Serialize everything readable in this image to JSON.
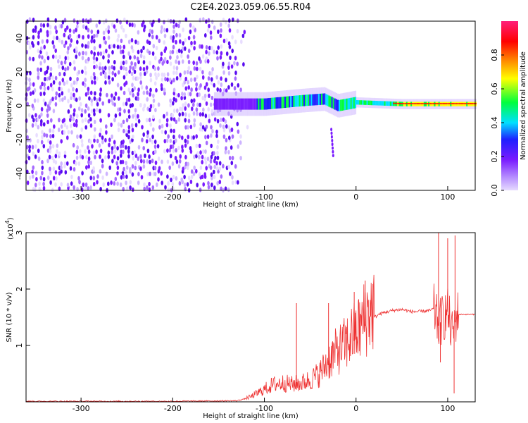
{
  "title": "C2E4.2023.059.06.55.R04",
  "colors": {
    "snr_line": "#ee3333",
    "axis": "#000000",
    "spectro_noise": "#7a1cff",
    "colorbar_stops": [
      "#d9c6ff",
      "#7a1cff",
      "#1f1fff",
      "#00e0ff",
      "#00ff3c",
      "#ffff00",
      "#ff7a00",
      "#ff0000",
      "#ff1f7a"
    ]
  },
  "chart_data": [
    {
      "type": "heatmap",
      "xlabel": "Height of straight line (km)",
      "ylabel": "Frequency (Hz)",
      "xlim": [
        -360,
        130
      ],
      "ylim": [
        -50,
        50
      ],
      "x_ticks": [
        -300,
        -200,
        -100,
        0,
        100
      ],
      "y_ticks": [
        -40,
        -20,
        0,
        20,
        40
      ],
      "description": "Broadband noise for x < -120 km; concentrated band near 0 Hz from -150 km to 130 km, amplitude increasing toward 0 km and beyond",
      "band_center_hz": [
        {
          "x": -150,
          "y": 1
        },
        {
          "x": -100,
          "y": 1
        },
        {
          "x": -60,
          "y": 3
        },
        {
          "x": -35,
          "y": 4
        },
        {
          "x": -20,
          "y": 0
        },
        {
          "x": 0,
          "y": 2
        },
        {
          "x": 50,
          "y": 1
        },
        {
          "x": 100,
          "y": 1
        },
        {
          "x": 130,
          "y": 1
        }
      ],
      "colorbar": {
        "label": "Normalized spectral amplitude",
        "ticks": [
          "0.0",
          "0.2",
          "0.4",
          "0.6",
          "0.8"
        ],
        "range": [
          0,
          1
        ]
      }
    },
    {
      "type": "line",
      "xlabel": "Height of straight line (km)",
      "ylabel": "SNR (10 * v/v)",
      "y_exponent_label": "(x10",
      "y_exponent_power": "4",
      "y_exponent_close": ")",
      "xlim": [
        -360,
        130
      ],
      "ylim": [
        0,
        3
      ],
      "x_ticks": [
        -300,
        -200,
        -100,
        0,
        100
      ],
      "y_ticks": [
        1,
        2,
        3
      ],
      "series": [
        {
          "x": [
            -360,
            -300,
            -200,
            -130,
            -115,
            -100,
            -90,
            -80,
            -70,
            -60,
            -50,
            -40,
            -30,
            -25,
            -20,
            -15,
            -10,
            -5,
            0,
            5,
            10,
            15,
            20,
            25,
            30,
            40,
            50,
            60,
            70,
            80,
            85,
            90,
            95,
            100,
            105,
            110,
            120,
            130
          ],
          "y": [
            0.01,
            0.01,
            0.01,
            0.02,
            0.08,
            0.2,
            0.28,
            0.3,
            0.28,
            0.3,
            0.35,
            0.45,
            0.65,
            0.75,
            0.82,
            0.88,
            0.95,
            1.05,
            1.1,
            1.2,
            1.35,
            1.45,
            1.5,
            1.55,
            1.58,
            1.62,
            1.64,
            1.6,
            1.6,
            1.62,
            1.65,
            1.35,
            1.5,
            1.6,
            1.2,
            1.55,
            1.55,
            1.55
          ]
        }
      ],
      "spikes": [
        {
          "x": -65,
          "y": 1.75
        },
        {
          "x": -30,
          "y": 1.75
        },
        {
          "x": -2,
          "y": 1.95
        },
        {
          "x": 10,
          "y": 2.15
        },
        {
          "x": 90,
          "y": 3.0
        },
        {
          "x": 100,
          "y": 2.9
        },
        {
          "x": 108,
          "y": 2.95
        },
        {
          "x": 107,
          "y": 0.15
        },
        {
          "x": 92,
          "y": 0.7
        }
      ]
    }
  ]
}
